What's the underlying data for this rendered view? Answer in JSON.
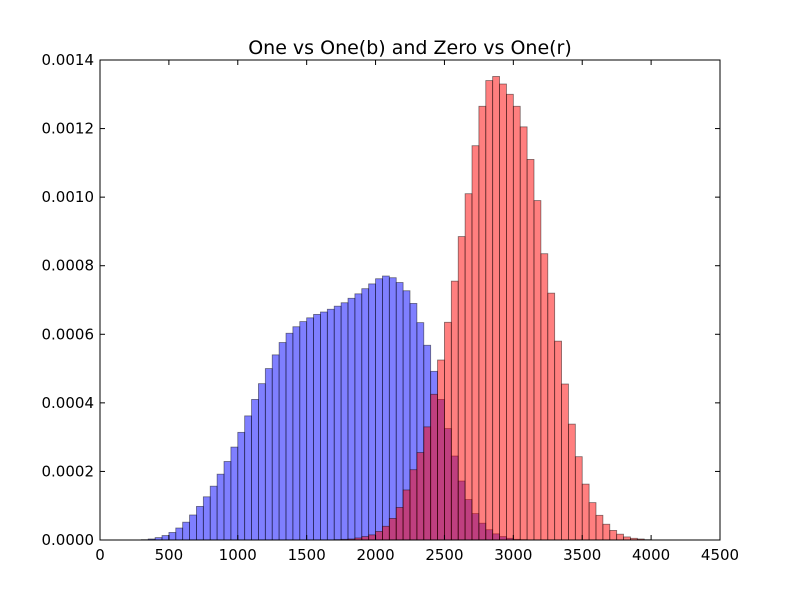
{
  "chart_data": {
    "type": "bar",
    "title": "One vs One(b) and Zero vs One(r)",
    "xlabel": "",
    "ylabel": "",
    "xlim": [
      0,
      4500
    ],
    "ylim": [
      0,
      0.0014
    ],
    "x_ticks": [
      "0",
      "500",
      "1000",
      "1500",
      "2000",
      "2500",
      "3000",
      "3500",
      "4000",
      "4500"
    ],
    "y_ticks": [
      "0.0000",
      "0.0002",
      "0.0004",
      "0.0006",
      "0.0008",
      "0.0010",
      "0.0012",
      "0.0014"
    ],
    "grid": false,
    "legend": "none",
    "series": [
      {
        "color": "#0000ff",
        "opacity": 0.5,
        "bin_start": 300,
        "bin_width": 50,
        "values": [
          1e-06,
          3e-06,
          7e-06,
          1.3e-05,
          2.2e-05,
          3.5e-05,
          5.2e-05,
          7.3e-05,
          9.8e-05,
          0.000126,
          0.000157,
          0.000192,
          0.000229,
          0.000271,
          0.000314,
          0.000362,
          0.00041,
          0.000456,
          0.0005,
          0.00054,
          0.000576,
          0.000603,
          0.000622,
          0.000637,
          0.000648,
          0.000658,
          0.000665,
          0.000673,
          0.000682,
          0.000692,
          0.000705,
          0.000718,
          0.000733,
          0.000747,
          0.000762,
          0.00077,
          0.000765,
          0.000751,
          0.000727,
          0.00069,
          0.000634,
          0.000568,
          0.000492,
          0.00041,
          0.000325,
          0.000245,
          0.000172,
          0.000118,
          7.7e-05,
          4.9e-05,
          3e-05,
          1.8e-05,
          1e-05,
          5e-06,
          2e-06,
          1e-06
        ]
      },
      {
        "color": "#ff0000",
        "opacity": 0.5,
        "bin_start": 1700,
        "bin_width": 50,
        "values": [
          1e-06,
          2e-06,
          3e-06,
          6e-06,
          1e-05,
          1.5e-05,
          2.5e-05,
          4e-05,
          6.3e-05,
          9.5e-05,
          0.000146,
          0.000205,
          0.000255,
          0.00033,
          0.000425,
          0.000525,
          0.000635,
          0.000755,
          0.000885,
          0.00101,
          0.00115,
          0.001265,
          0.00134,
          0.001352,
          0.00133,
          0.0013,
          0.001265,
          0.001205,
          0.00111,
          0.00099,
          0.000835,
          0.00072,
          0.00058,
          0.000455,
          0.000338,
          0.000243,
          0.000163,
          0.000109,
          7.2e-05,
          4.6e-05,
          2.8e-05,
          1.7e-05,
          9e-06,
          5e-06,
          3e-06,
          1e-06
        ]
      }
    ]
  }
}
